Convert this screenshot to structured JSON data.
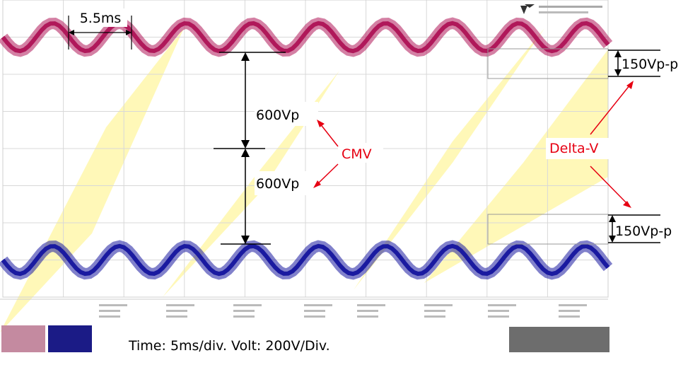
{
  "chart_data": {
    "type": "line",
    "title": "",
    "time_scale": "Time: 5ms/div. Volt: 200V/Div.",
    "series": [
      {
        "name": "",
        "color": "#b0185a",
        "offset_v": 600,
        "ripple_vpp": 150,
        "period_ms": 5.5
      },
      {
        "name": "",
        "color": "#1a1aa0",
        "offset_v": -600,
        "ripple_vpp": 150,
        "period_ms": 5.5
      }
    ],
    "annotations": {
      "period": "5.5ms",
      "upper_amplitude": "600Vp",
      "lower_amplitude": "600Vp",
      "cmv": "CMV",
      "delta_v": "Delta-V",
      "upper_ripple": "150Vp-p",
      "lower_ripple": "150Vp-p"
    },
    "grid": true,
    "divisions_x": 10,
    "divisions_y": 8
  },
  "colors": {
    "trace_upper": "#b0185a",
    "trace_upper_alt": "#d8742a",
    "trace_lower": "#1a1aa0",
    "trace_lower_alt": "#5a5a80",
    "highlight": "#fff6a0",
    "annotation_red": "#e60012"
  }
}
